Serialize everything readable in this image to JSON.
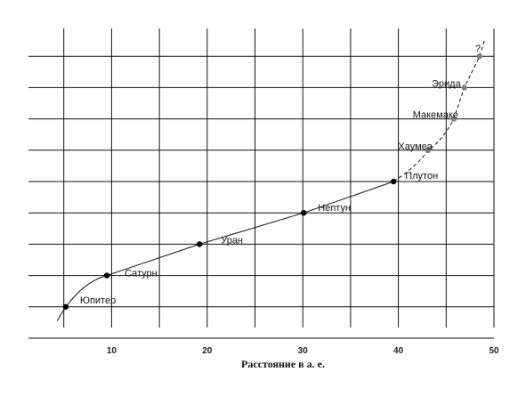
{
  "chart_data": {
    "type": "scatter",
    "title": "",
    "xlabel": "Расстояние в а. е.",
    "ylabel": "",
    "xlim": [
      0,
      50
    ],
    "x_ticks": [
      10,
      20,
      30,
      40,
      50
    ],
    "ylim": [
      0,
      9.5
    ],
    "grid": true,
    "series": [
      {
        "style": "solid",
        "points": [
          {
            "name": "Юпитер",
            "x": 5.2,
            "y": 1,
            "color": "#000000"
          },
          {
            "name": "Сатурн",
            "x": 9.5,
            "y": 2,
            "color": "#000000"
          },
          {
            "name": "Уран",
            "x": 19.2,
            "y": 3,
            "color": "#000000"
          },
          {
            "name": "Нептун",
            "x": 30.1,
            "y": 4,
            "color": "#000000"
          },
          {
            "name": "Плутон",
            "x": 39.5,
            "y": 5,
            "color": "#000000"
          }
        ]
      },
      {
        "style": "dashed",
        "points": [
          {
            "name": "Хаумеа",
            "x": 43.1,
            "y": 6,
            "color": "#808080"
          },
          {
            "name": "Макемаке",
            "x": 45.8,
            "y": 7,
            "color": "#808080"
          },
          {
            "name": "Эрида",
            "x": 46.9,
            "y": 8,
            "color": "#808080"
          },
          {
            "name": "?",
            "x": 48.5,
            "y": 9,
            "color": "#808080"
          }
        ]
      }
    ]
  }
}
